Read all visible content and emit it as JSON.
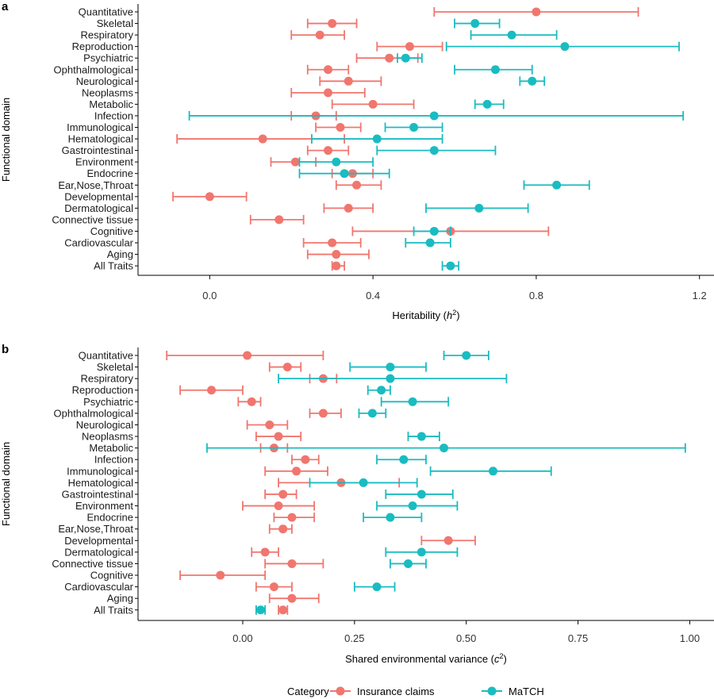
{
  "colors": {
    "insurance": "#f0766e",
    "match": "#19bcc1"
  },
  "legend": {
    "title": "Category",
    "entries": [
      {
        "name": "Insurance claims",
        "color": "#f0766e"
      },
      {
        "name": "MaTCH",
        "color": "#19bcc1"
      }
    ]
  },
  "chart_data": [
    {
      "type": "scatter",
      "panel": "a",
      "ylabel": "Functional domain",
      "xlabel_main": "Heritability (",
      "xlabel_var": "h",
      "xlabel_sup": "2",
      "xlabel_end": ")",
      "xlim": [
        -0.16,
        1.22
      ],
      "xticks": [
        0.0,
        0.4,
        0.8,
        1.2
      ],
      "xtick_labels": [
        "0.0",
        "0.4",
        "0.8",
        "1.2"
      ],
      "grid": false,
      "categories": [
        "Quantitative",
        "Skeletal",
        "Respiratory",
        "Reproduction",
        "Psychiatric",
        "Ophthalmological",
        "Neurological",
        "Neoplasms",
        "Metabolic",
        "Infection",
        "Immunological",
        "Hematological",
        "Gastrointestinal",
        "Environment",
        "Endocrine",
        "Ear,Nose,Throat",
        "Developmental",
        "Dermatological",
        "Connective tissue",
        "Cognitive",
        "Cardiovascular",
        "Aging",
        "All Traits"
      ],
      "series": [
        {
          "name": "Insurance claims",
          "color": "#f0766e",
          "points": [
            {
              "y": "Quantitative",
              "x": 0.8,
              "lo": 0.55,
              "hi": 1.05
            },
            {
              "y": "Skeletal",
              "x": 0.3,
              "lo": 0.24,
              "hi": 0.36
            },
            {
              "y": "Respiratory",
              "x": 0.27,
              "lo": 0.2,
              "hi": 0.33
            },
            {
              "y": "Reproduction",
              "x": 0.49,
              "lo": 0.41,
              "hi": 0.57
            },
            {
              "y": "Psychiatric",
              "x": 0.44,
              "lo": 0.36,
              "hi": 0.51
            },
            {
              "y": "Ophthalmological",
              "x": 0.29,
              "lo": 0.24,
              "hi": 0.34
            },
            {
              "y": "Neurological",
              "x": 0.34,
              "lo": 0.27,
              "hi": 0.42
            },
            {
              "y": "Neoplasms",
              "x": 0.29,
              "lo": 0.2,
              "hi": 0.38
            },
            {
              "y": "Metabolic",
              "x": 0.4,
              "lo": 0.3,
              "hi": 0.5
            },
            {
              "y": "Infection",
              "x": 0.26,
              "lo": 0.2,
              "hi": 0.31
            },
            {
              "y": "Immunological",
              "x": 0.32,
              "lo": 0.26,
              "hi": 0.37
            },
            {
              "y": "Hematological",
              "x": 0.13,
              "lo": -0.08,
              "hi": 0.33
            },
            {
              "y": "Gastrointestinal",
              "x": 0.29,
              "lo": 0.24,
              "hi": 0.34
            },
            {
              "y": "Environment",
              "x": 0.21,
              "lo": 0.15,
              "hi": 0.26
            },
            {
              "y": "Endocrine",
              "x": 0.35,
              "lo": 0.3,
              "hi": 0.4
            },
            {
              "y": "Ear,Nose,Throat",
              "x": 0.36,
              "lo": 0.31,
              "hi": 0.42
            },
            {
              "y": "Developmental",
              "x": 0.0,
              "lo": -0.09,
              "hi": 0.09
            },
            {
              "y": "Dermatological",
              "x": 0.34,
              "lo": 0.28,
              "hi": 0.4
            },
            {
              "y": "Connective tissue",
              "x": 0.17,
              "lo": 0.1,
              "hi": 0.23
            },
            {
              "y": "Cognitive",
              "x": 0.59,
              "lo": 0.35,
              "hi": 0.83
            },
            {
              "y": "Cardiovascular",
              "x": 0.3,
              "lo": 0.23,
              "hi": 0.37
            },
            {
              "y": "Aging",
              "x": 0.31,
              "lo": 0.24,
              "hi": 0.39
            },
            {
              "y": "All Traits",
              "x": 0.31,
              "lo": 0.3,
              "hi": 0.33
            }
          ]
        },
        {
          "name": "MaTCH",
          "color": "#19bcc1",
          "points": [
            {
              "y": "Skeletal",
              "x": 0.65,
              "lo": 0.6,
              "hi": 0.71
            },
            {
              "y": "Respiratory",
              "x": 0.74,
              "lo": 0.64,
              "hi": 0.85
            },
            {
              "y": "Reproduction",
              "x": 0.87,
              "lo": 0.58,
              "hi": 1.15
            },
            {
              "y": "Psychiatric",
              "x": 0.48,
              "lo": 0.46,
              "hi": 0.52
            },
            {
              "y": "Ophthalmological",
              "x": 0.7,
              "lo": 0.6,
              "hi": 0.79
            },
            {
              "y": "Neurological",
              "x": 0.79,
              "lo": 0.76,
              "hi": 0.82
            },
            {
              "y": "Metabolic",
              "x": 0.68,
              "lo": 0.65,
              "hi": 0.72
            },
            {
              "y": "Infection",
              "x": 0.55,
              "lo": -0.05,
              "hi": 1.16
            },
            {
              "y": "Immunological",
              "x": 0.5,
              "lo": 0.43,
              "hi": 0.57
            },
            {
              "y": "Hematological",
              "x": 0.41,
              "lo": 0.25,
              "hi": 0.57
            },
            {
              "y": "Gastrointestinal",
              "x": 0.55,
              "lo": 0.41,
              "hi": 0.7
            },
            {
              "y": "Environment",
              "x": 0.31,
              "lo": 0.22,
              "hi": 0.4
            },
            {
              "y": "Endocrine",
              "x": 0.33,
              "lo": 0.22,
              "hi": 0.44
            },
            {
              "y": "Ear,Nose,Throat",
              "x": 0.85,
              "lo": 0.77,
              "hi": 0.93
            },
            {
              "y": "Dermatological",
              "x": 0.66,
              "lo": 0.53,
              "hi": 0.78
            },
            {
              "y": "Cognitive",
              "x": 0.55,
              "lo": 0.5,
              "hi": 0.59
            },
            {
              "y": "Cardiovascular",
              "x": 0.54,
              "lo": 0.48,
              "hi": 0.59
            },
            {
              "y": "All Traits",
              "x": 0.59,
              "lo": 0.57,
              "hi": 0.61
            }
          ]
        }
      ]
    },
    {
      "type": "scatter",
      "panel": "b",
      "ylabel": "Functional domain",
      "xlabel_main": "Shared environmental variance (",
      "xlabel_var": "c",
      "xlabel_sup": "2",
      "xlabel_end": ")",
      "xlim": [
        -0.22,
        1.04
      ],
      "xticks": [
        0.0,
        0.25,
        0.5,
        0.75,
        1.0
      ],
      "xtick_labels": [
        "0.00",
        "0.25",
        "0.50",
        "0.75",
        "1.00"
      ],
      "grid": false,
      "categories": [
        "Quantitative",
        "Skeletal",
        "Respiratory",
        "Reproduction",
        "Psychiatric",
        "Ophthalmological",
        "Neurological",
        "Neoplasms",
        "Metabolic",
        "Infection",
        "Immunological",
        "Hematological",
        "Gastrointestinal",
        "Environment",
        "Endocrine",
        "Ear,Nose,Throat",
        "Developmental",
        "Dermatological",
        "Connective tissue",
        "Cognitive",
        "Cardiovascular",
        "Aging",
        "All Traits"
      ],
      "series": [
        {
          "name": "Insurance claims",
          "color": "#f0766e",
          "points": [
            {
              "y": "Quantitative",
              "x": 0.01,
              "lo": -0.17,
              "hi": 0.18
            },
            {
              "y": "Skeletal",
              "x": 0.1,
              "lo": 0.06,
              "hi": 0.13
            },
            {
              "y": "Respiratory",
              "x": 0.18,
              "lo": 0.15,
              "hi": 0.21
            },
            {
              "y": "Reproduction",
              "x": -0.07,
              "lo": -0.14,
              "hi": 0.0
            },
            {
              "y": "Psychiatric",
              "x": 0.02,
              "lo": -0.01,
              "hi": 0.04
            },
            {
              "y": "Ophthalmological",
              "x": 0.18,
              "lo": 0.15,
              "hi": 0.22
            },
            {
              "y": "Neurological",
              "x": 0.06,
              "lo": 0.01,
              "hi": 0.1
            },
            {
              "y": "Neoplasms",
              "x": 0.08,
              "lo": 0.03,
              "hi": 0.13
            },
            {
              "y": "Metabolic",
              "x": 0.07,
              "lo": 0.04,
              "hi": 0.1
            },
            {
              "y": "Infection",
              "x": 0.14,
              "lo": 0.11,
              "hi": 0.17
            },
            {
              "y": "Immunological",
              "x": 0.12,
              "lo": 0.05,
              "hi": 0.19
            },
            {
              "y": "Hematological",
              "x": 0.22,
              "lo": 0.08,
              "hi": 0.35
            },
            {
              "y": "Gastrointestinal",
              "x": 0.09,
              "lo": 0.05,
              "hi": 0.12
            },
            {
              "y": "Environment",
              "x": 0.08,
              "lo": 0.0,
              "hi": 0.16
            },
            {
              "y": "Endocrine",
              "x": 0.11,
              "lo": 0.07,
              "hi": 0.16
            },
            {
              "y": "Ear,Nose,Throat",
              "x": 0.09,
              "lo": 0.06,
              "hi": 0.11
            },
            {
              "y": "Developmental",
              "x": 0.46,
              "lo": 0.4,
              "hi": 0.52
            },
            {
              "y": "Dermatological",
              "x": 0.05,
              "lo": 0.02,
              "hi": 0.08
            },
            {
              "y": "Connective tissue",
              "x": 0.11,
              "lo": 0.05,
              "hi": 0.18
            },
            {
              "y": "Cognitive",
              "x": -0.05,
              "lo": -0.14,
              "hi": 0.05
            },
            {
              "y": "Cardiovascular",
              "x": 0.07,
              "lo": 0.03,
              "hi": 0.11
            },
            {
              "y": "Aging",
              "x": 0.11,
              "lo": 0.06,
              "hi": 0.17
            },
            {
              "y": "All Traits",
              "x": 0.09,
              "lo": 0.08,
              "hi": 0.1
            }
          ]
        },
        {
          "name": "MaTCH",
          "color": "#19bcc1",
          "points": [
            {
              "y": "Quantitative",
              "x": 0.5,
              "lo": 0.45,
              "hi": 0.55
            },
            {
              "y": "Skeletal",
              "x": 0.33,
              "lo": 0.24,
              "hi": 0.41
            },
            {
              "y": "Respiratory",
              "x": 0.33,
              "lo": 0.08,
              "hi": 0.59
            },
            {
              "y": "Reproduction",
              "x": 0.31,
              "lo": 0.28,
              "hi": 0.33
            },
            {
              "y": "Psychiatric",
              "x": 0.38,
              "lo": 0.31,
              "hi": 0.46
            },
            {
              "y": "Ophthalmological",
              "x": 0.29,
              "lo": 0.26,
              "hi": 0.32
            },
            {
              "y": "Neoplasms",
              "x": 0.4,
              "lo": 0.37,
              "hi": 0.44
            },
            {
              "y": "Metabolic",
              "x": 0.45,
              "lo": -0.08,
              "hi": 0.99
            },
            {
              "y": "Infection",
              "x": 0.36,
              "lo": 0.3,
              "hi": 0.41
            },
            {
              "y": "Immunological",
              "x": 0.56,
              "lo": 0.42,
              "hi": 0.69
            },
            {
              "y": "Hematological",
              "x": 0.27,
              "lo": 0.15,
              "hi": 0.39
            },
            {
              "y": "Gastrointestinal",
              "x": 0.4,
              "lo": 0.32,
              "hi": 0.47
            },
            {
              "y": "Environment",
              "x": 0.38,
              "lo": 0.3,
              "hi": 0.48
            },
            {
              "y": "Endocrine",
              "x": 0.33,
              "lo": 0.27,
              "hi": 0.4
            },
            {
              "y": "Dermatological",
              "x": 0.4,
              "lo": 0.32,
              "hi": 0.48
            },
            {
              "y": "Connective tissue",
              "x": 0.37,
              "lo": 0.33,
              "hi": 0.41
            },
            {
              "y": "Cardiovascular",
              "x": 0.3,
              "lo": 0.25,
              "hi": 0.34
            },
            {
              "y": "All Traits",
              "x": 0.04,
              "lo": 0.03,
              "hi": 0.05
            }
          ]
        }
      ]
    }
  ]
}
